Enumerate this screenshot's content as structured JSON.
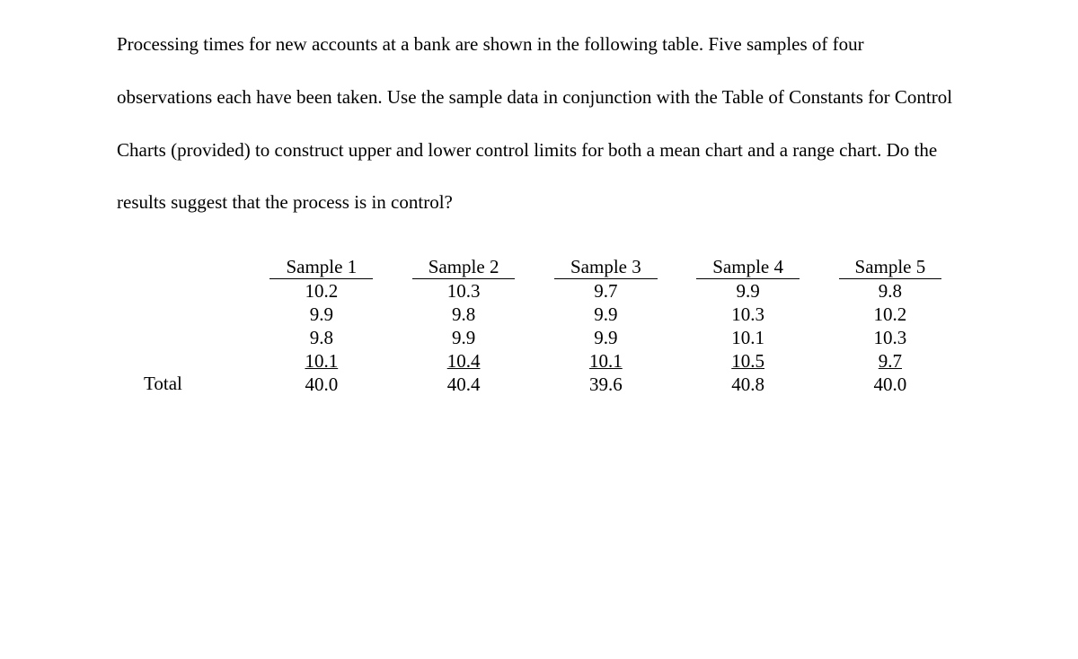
{
  "problem": {
    "text": "Processing times for new accounts at a bank are shown in the following table. Five samples of four observations each have been taken. Use the sample data in conjunction with the Table of Constants for Control Charts (provided) to construct upper and lower control limits for both a mean chart and a range chart. Do the results suggest that the process is in control?"
  },
  "table": {
    "type": "table",
    "row_labels": [
      "",
      "",
      "",
      "",
      "",
      "Total"
    ],
    "columns": [
      {
        "header": "Sample 1",
        "values": [
          "10.2",
          "9.9",
          "9.8",
          "10.1",
          "40.0"
        ]
      },
      {
        "header": "Sample 2",
        "values": [
          "10.3",
          "9.8",
          "9.9",
          "10.4",
          "40.4"
        ]
      },
      {
        "header": "Sample 3",
        "values": [
          "9.7",
          "9.9",
          "9.9",
          "10.1",
          "39.6"
        ]
      },
      {
        "header": "Sample 4",
        "values": [
          "9.9",
          "10.3",
          "10.1",
          "10.5",
          "40.8"
        ]
      },
      {
        "header": "Sample 5",
        "values": [
          "9.8",
          "10.2",
          "10.3",
          "9.7",
          "40.0"
        ]
      }
    ],
    "underlined_row_index": 3,
    "font_size": 21,
    "text_color": "#000000",
    "background_color": "#ffffff",
    "border_color": "#000000"
  }
}
